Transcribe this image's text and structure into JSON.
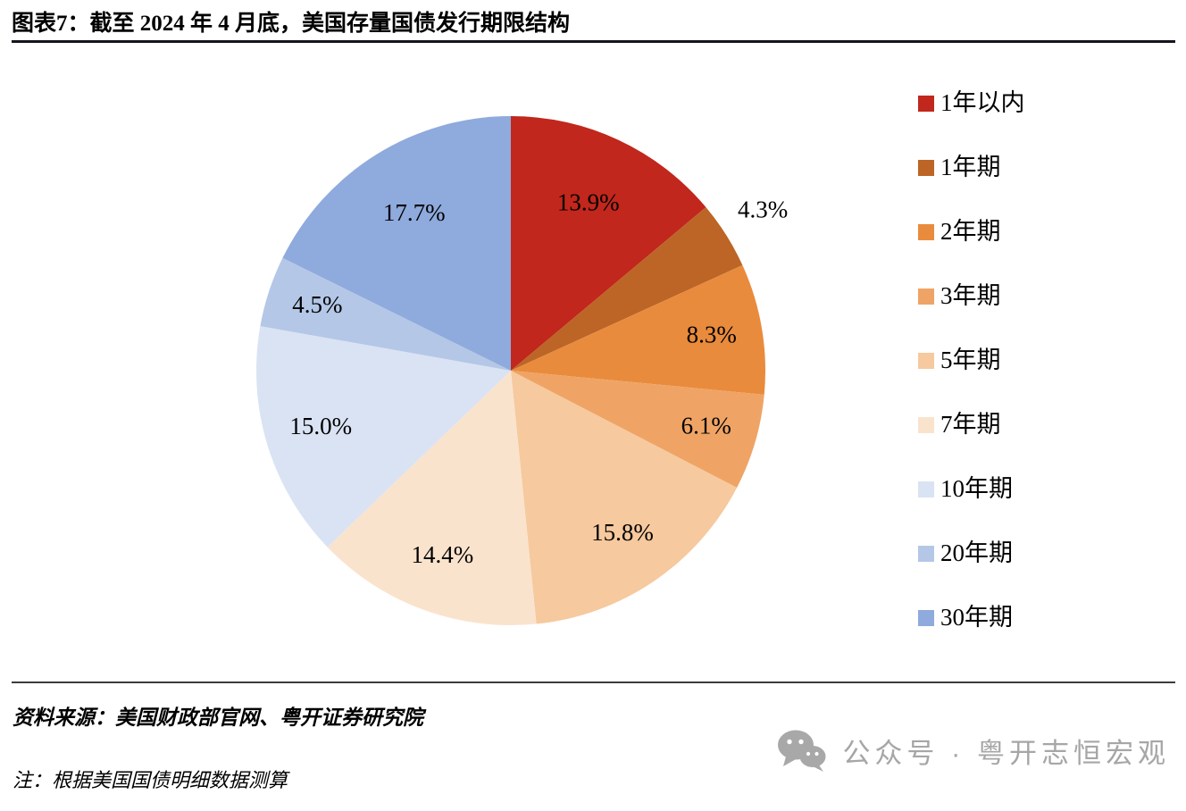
{
  "header": {
    "title": "图表7：截至 2024 年 4 月底，美国存量国债发行期限结构"
  },
  "chart_data": {
    "type": "pie",
    "title": "截至 2024 年 4 月底，美国存量国债发行期限结构",
    "unit": "%",
    "slices": [
      {
        "label": "1年以内",
        "value": 13.9,
        "pct_label": "13.9%",
        "color": "#c1271c"
      },
      {
        "label": "1年期",
        "value": 4.3,
        "pct_label": "4.3%",
        "color": "#bc6526"
      },
      {
        "label": "2年期",
        "value": 8.3,
        "pct_label": "8.3%",
        "color": "#e98b3d"
      },
      {
        "label": "3年期",
        "value": 6.1,
        "pct_label": "6.1%",
        "color": "#efa465"
      },
      {
        "label": "5年期",
        "value": 15.8,
        "pct_label": "15.8%",
        "color": "#f6c99e"
      },
      {
        "label": "7年期",
        "value": 14.4,
        "pct_label": "14.4%",
        "color": "#fae3cd"
      },
      {
        "label": "10年期",
        "value": 15.0,
        "pct_label": "15.0%",
        "color": "#dae3f3"
      },
      {
        "label": "20年期",
        "value": 4.5,
        "pct_label": "4.5%",
        "color": "#b4c7e7"
      },
      {
        "label": "30年期",
        "value": 17.7,
        "pct_label": "17.7%",
        "color": "#8faadc"
      }
    ],
    "layout": {
      "start_angle_deg": 0,
      "clockwise": true,
      "legend_position": "right",
      "label_color": "#000000",
      "label_radius": [
        0.72,
        1.17,
        0.8,
        0.8,
        0.78,
        0.78,
        0.78,
        0.8,
        0.72
      ]
    }
  },
  "footer": {
    "source": "资料来源：美国财政部官网、粤开证券研究院",
    "note": "注：根据美国国债明细数据测算"
  },
  "watermark": {
    "text": "公众号 · 粤开志恒宏观",
    "icon": "wechat-icon",
    "color": "#a6a6a6"
  }
}
